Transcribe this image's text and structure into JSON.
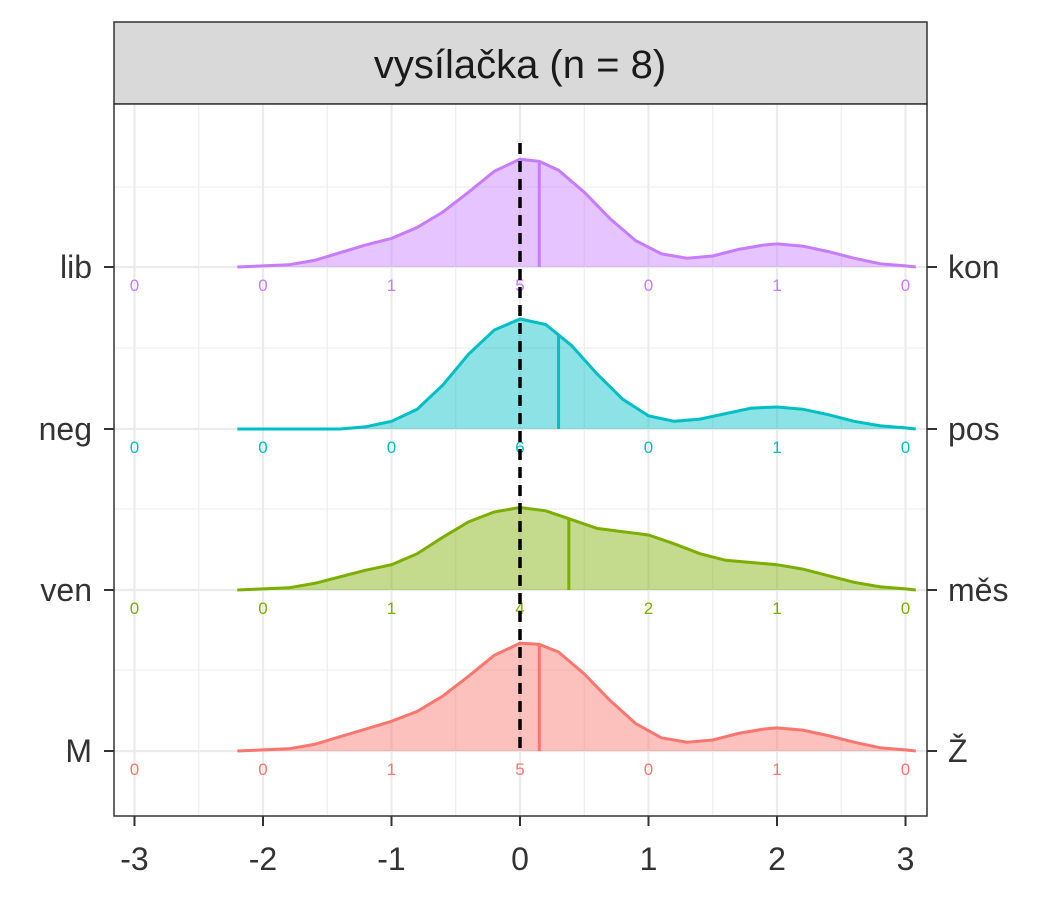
{
  "chart_data": {
    "type": "ridgeline",
    "title": "vysílačka (n = 8)",
    "xlim": [
      -3.1,
      3.1
    ],
    "x_ticks": [
      "-3",
      "-2",
      "-1",
      "0",
      "1",
      "2",
      "3"
    ],
    "x_tick_values": [
      -3,
      -2,
      -1,
      0,
      1,
      2,
      3
    ],
    "reference_line_x": 0,
    "grid": true,
    "count_positions": [
      -3,
      -2,
      -1,
      0,
      1,
      2,
      3
    ],
    "series": [
      {
        "left_label": "M",
        "right_label": "Ž",
        "color": "#F8766D",
        "fill": "#F8766D",
        "mean": 0.15,
        "counts": [
          "0",
          "0",
          "1",
          "5",
          "0",
          "1",
          "0"
        ],
        "density": [
          [
            -2.2,
            0.0
          ],
          [
            -2.0,
            0.01
          ],
          [
            -1.8,
            0.02
          ],
          [
            -1.6,
            0.06
          ],
          [
            -1.4,
            0.13
          ],
          [
            -1.2,
            0.2
          ],
          [
            -1.0,
            0.27
          ],
          [
            -0.8,
            0.36
          ],
          [
            -0.6,
            0.5
          ],
          [
            -0.4,
            0.68
          ],
          [
            -0.2,
            0.87
          ],
          [
            0.0,
            0.98
          ],
          [
            0.15,
            0.97
          ],
          [
            0.3,
            0.9
          ],
          [
            0.5,
            0.7
          ],
          [
            0.7,
            0.46
          ],
          [
            0.9,
            0.25
          ],
          [
            1.1,
            0.12
          ],
          [
            1.3,
            0.08
          ],
          [
            1.5,
            0.1
          ],
          [
            1.7,
            0.16
          ],
          [
            1.9,
            0.2
          ],
          [
            2.0,
            0.21
          ],
          [
            2.2,
            0.19
          ],
          [
            2.4,
            0.14
          ],
          [
            2.6,
            0.08
          ],
          [
            2.8,
            0.03
          ],
          [
            3.0,
            0.01
          ],
          [
            3.08,
            0.0
          ]
        ]
      },
      {
        "left_label": "ven",
        "right_label": "měs",
        "color": "#7CAE00",
        "fill": "#7CAE00",
        "mean": 0.38,
        "counts": [
          "0",
          "0",
          "1",
          "4",
          "2",
          "1",
          "0"
        ],
        "density": [
          [
            -2.2,
            0.0
          ],
          [
            -2.0,
            0.01
          ],
          [
            -1.8,
            0.02
          ],
          [
            -1.6,
            0.06
          ],
          [
            -1.4,
            0.12
          ],
          [
            -1.2,
            0.18
          ],
          [
            -1.0,
            0.23
          ],
          [
            -0.8,
            0.33
          ],
          [
            -0.6,
            0.48
          ],
          [
            -0.4,
            0.62
          ],
          [
            -0.2,
            0.71
          ],
          [
            0.0,
            0.75
          ],
          [
            0.2,
            0.72
          ],
          [
            0.4,
            0.64
          ],
          [
            0.6,
            0.56
          ],
          [
            0.8,
            0.53
          ],
          [
            1.0,
            0.5
          ],
          [
            1.2,
            0.42
          ],
          [
            1.4,
            0.33
          ],
          [
            1.6,
            0.27
          ],
          [
            1.8,
            0.25
          ],
          [
            2.0,
            0.23
          ],
          [
            2.2,
            0.19
          ],
          [
            2.4,
            0.13
          ],
          [
            2.6,
            0.07
          ],
          [
            2.8,
            0.03
          ],
          [
            3.0,
            0.01
          ],
          [
            3.08,
            0.0
          ]
        ]
      },
      {
        "left_label": "neg",
        "right_label": "pos",
        "color": "#00BFC4",
        "fill": "#00BFC4",
        "mean": 0.3,
        "counts": [
          "0",
          "0",
          "0",
          "6",
          "0",
          "1",
          "0"
        ],
        "density": [
          [
            -2.2,
            0.0
          ],
          [
            -1.4,
            0.0
          ],
          [
            -1.2,
            0.02
          ],
          [
            -1.0,
            0.07
          ],
          [
            -0.8,
            0.18
          ],
          [
            -0.6,
            0.4
          ],
          [
            -0.4,
            0.68
          ],
          [
            -0.2,
            0.9
          ],
          [
            0.0,
            1.0
          ],
          [
            0.2,
            0.95
          ],
          [
            0.4,
            0.76
          ],
          [
            0.6,
            0.5
          ],
          [
            0.8,
            0.27
          ],
          [
            1.0,
            0.12
          ],
          [
            1.2,
            0.07
          ],
          [
            1.4,
            0.09
          ],
          [
            1.6,
            0.14
          ],
          [
            1.8,
            0.19
          ],
          [
            2.0,
            0.2
          ],
          [
            2.2,
            0.18
          ],
          [
            2.4,
            0.13
          ],
          [
            2.6,
            0.07
          ],
          [
            2.8,
            0.03
          ],
          [
            3.0,
            0.01
          ],
          [
            3.08,
            0.0
          ]
        ]
      },
      {
        "left_label": "lib",
        "right_label": "kon",
        "color": "#C77CFF",
        "fill": "#C77CFF",
        "mean": 0.15,
        "counts": [
          "0",
          "0",
          "1",
          "5",
          "0",
          "1",
          "0"
        ],
        "density": [
          [
            -2.2,
            0.0
          ],
          [
            -2.0,
            0.01
          ],
          [
            -1.8,
            0.02
          ],
          [
            -1.6,
            0.06
          ],
          [
            -1.4,
            0.13
          ],
          [
            -1.2,
            0.2
          ],
          [
            -1.0,
            0.26
          ],
          [
            -0.8,
            0.36
          ],
          [
            -0.6,
            0.5
          ],
          [
            -0.4,
            0.68
          ],
          [
            -0.2,
            0.87
          ],
          [
            0.0,
            0.98
          ],
          [
            0.15,
            0.96
          ],
          [
            0.3,
            0.88
          ],
          [
            0.5,
            0.68
          ],
          [
            0.7,
            0.44
          ],
          [
            0.9,
            0.24
          ],
          [
            1.1,
            0.12
          ],
          [
            1.3,
            0.08
          ],
          [
            1.5,
            0.1
          ],
          [
            1.7,
            0.16
          ],
          [
            1.9,
            0.2
          ],
          [
            2.0,
            0.21
          ],
          [
            2.2,
            0.19
          ],
          [
            2.4,
            0.14
          ],
          [
            2.6,
            0.08
          ],
          [
            2.8,
            0.03
          ],
          [
            3.0,
            0.01
          ],
          [
            3.08,
            0.0
          ]
        ]
      }
    ]
  }
}
